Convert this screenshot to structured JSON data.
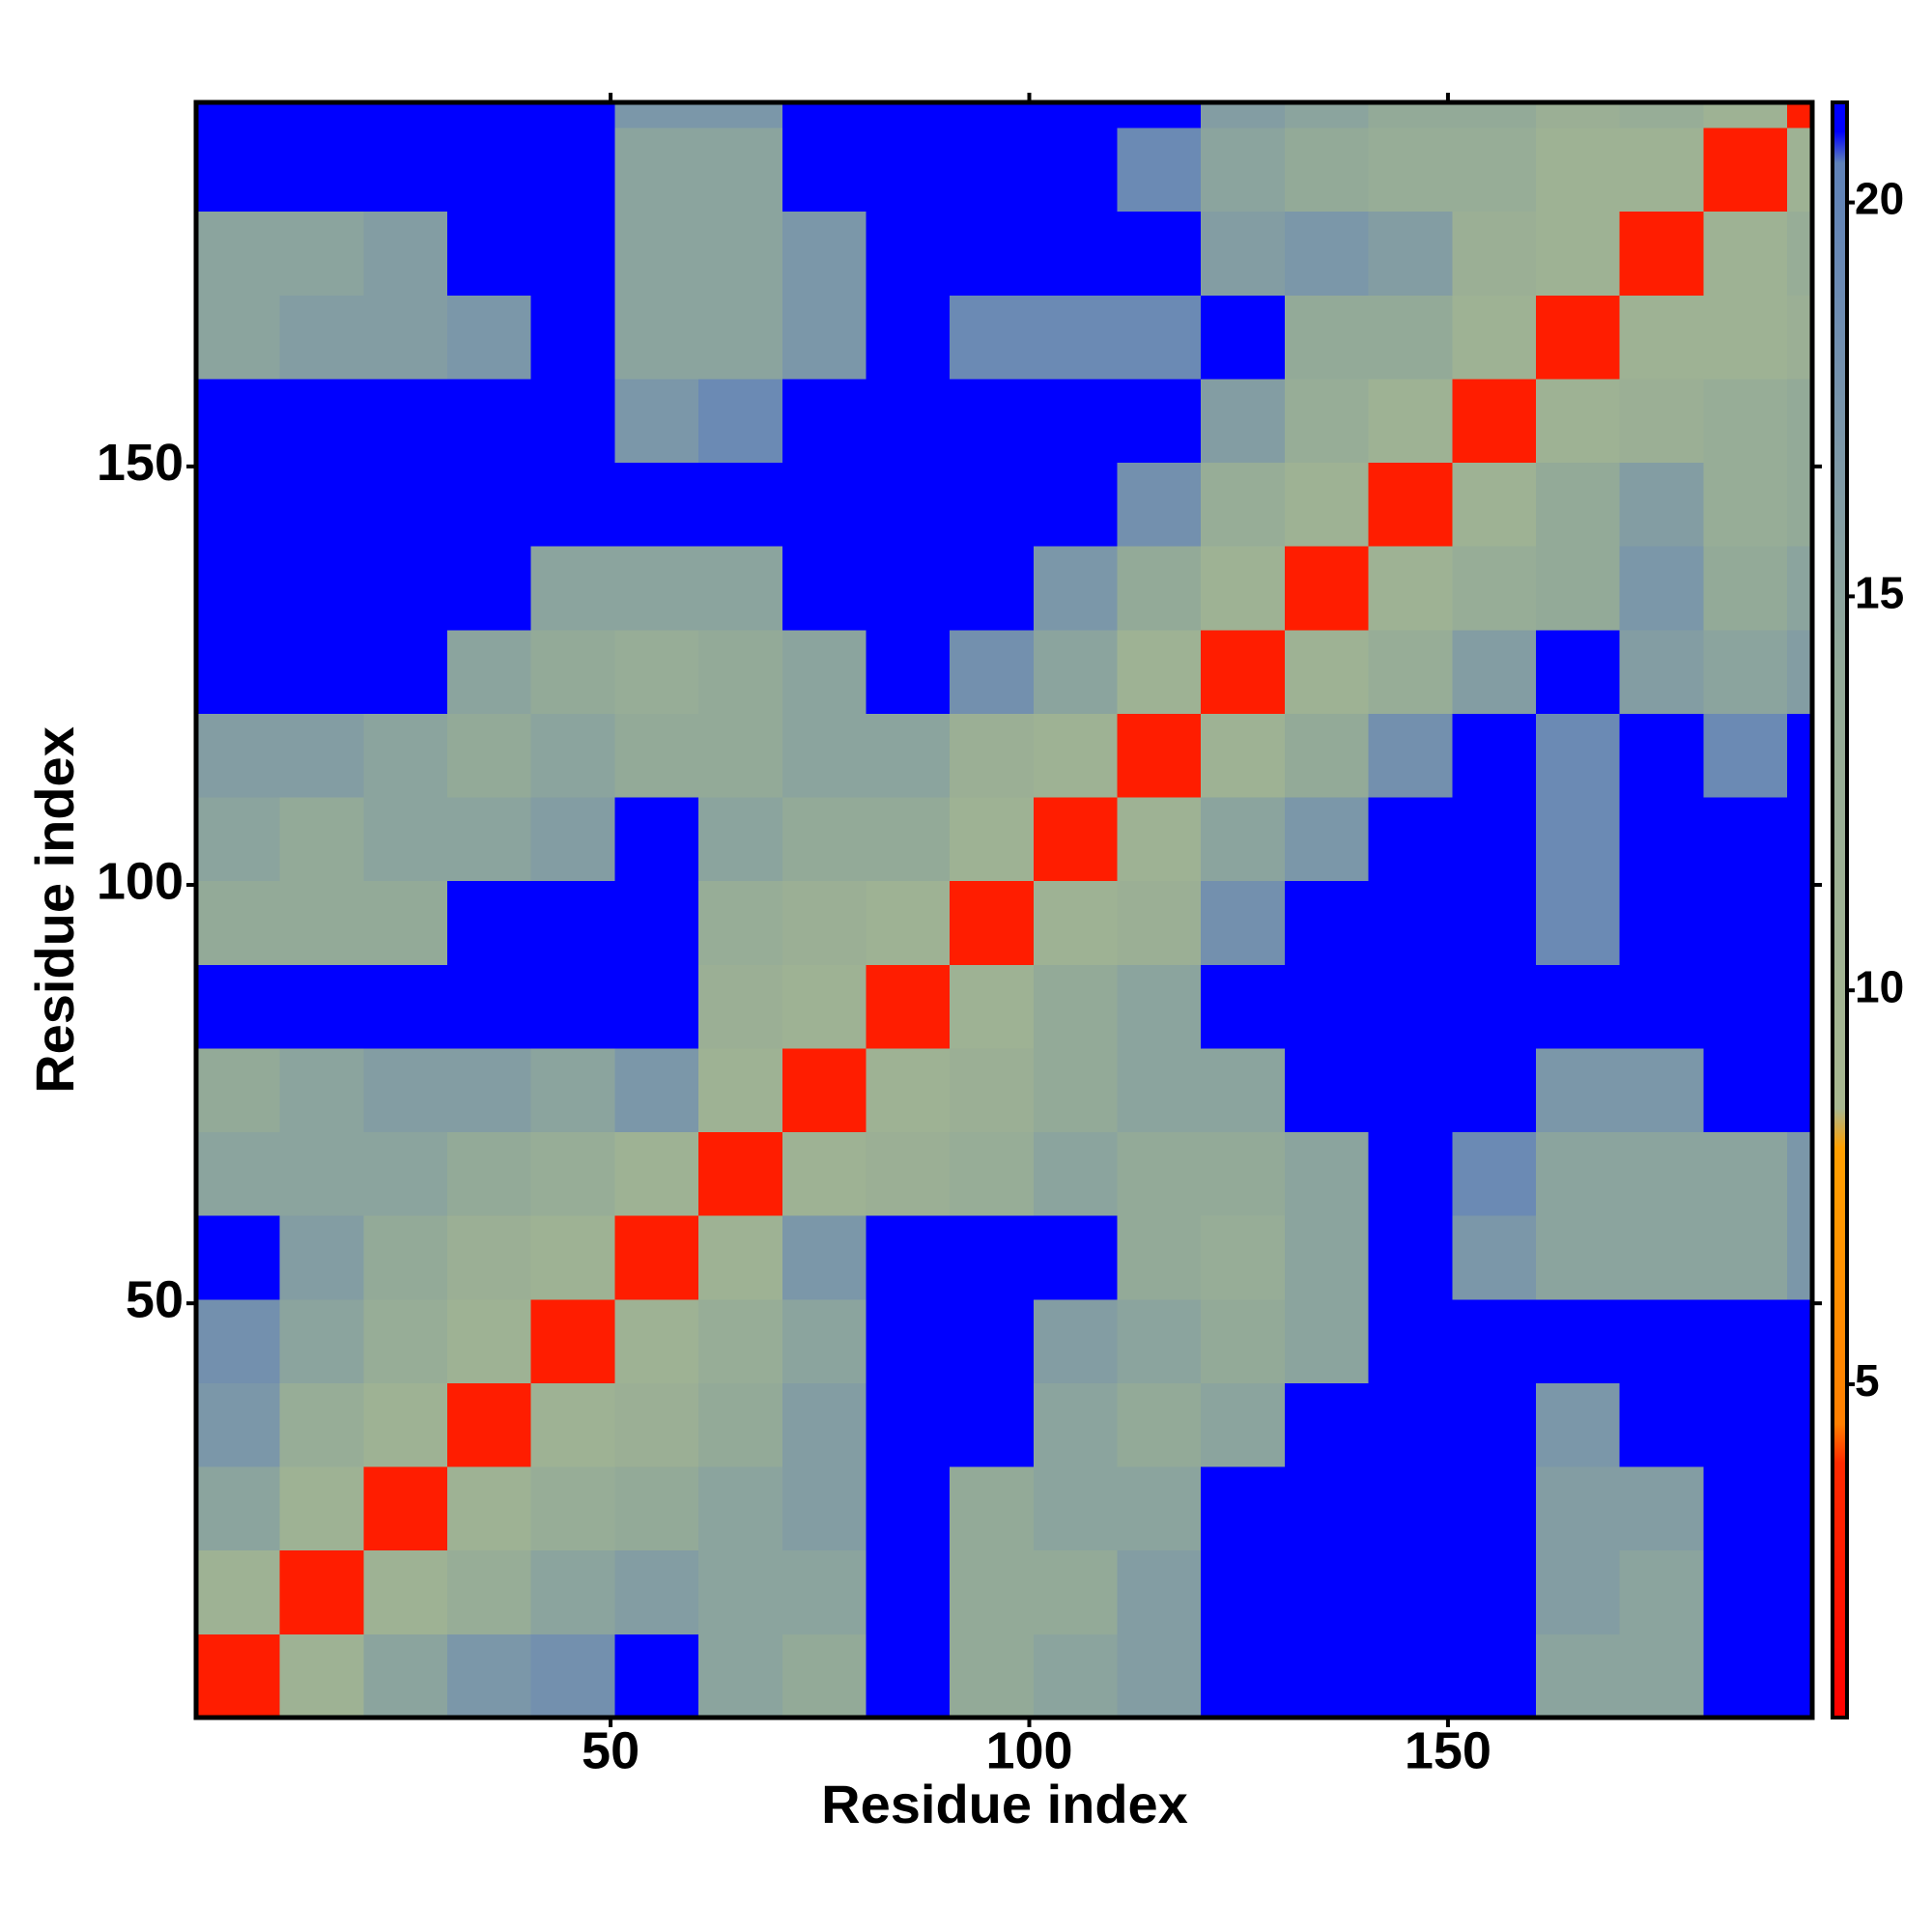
{
  "chart_data": {
    "type": "heatmap",
    "xlabel": "Residue index",
    "ylabel": "Residue index",
    "xlim": [
      0.5,
      193.5
    ],
    "ylim": [
      0.5,
      193.5
    ],
    "xticks": [
      50,
      100,
      150
    ],
    "yticks": [
      50,
      100,
      150
    ],
    "xbins": [
      0.5,
      10.5,
      20.5,
      30.5,
      40.5,
      50.5,
      60.5,
      70.5,
      80.5,
      90.5,
      100.5,
      110.5,
      120.5,
      130.5,
      140.5,
      150.5,
      160.5,
      170.5,
      180.5,
      190.5,
      193.5
    ],
    "ybins": [
      0.5,
      10.5,
      20.5,
      30.5,
      40.5,
      50.5,
      60.5,
      70.5,
      80.5,
      90.5,
      100.5,
      110.5,
      120.5,
      130.5,
      140.5,
      150.5,
      160.5,
      170.5,
      180.5,
      190.5,
      193.5
    ],
    "z": [
      [
        3,
        11,
        15,
        17,
        18,
        21,
        15,
        14,
        21,
        14,
        15,
        16,
        21,
        21,
        21,
        21,
        15,
        15,
        21,
        21
      ],
      [
        11,
        3,
        11,
        13,
        15,
        16,
        15,
        15,
        21,
        14,
        14,
        16,
        21,
        21,
        21,
        21,
        16,
        15,
        21,
        21
      ],
      [
        15,
        11,
        3,
        11,
        13,
        14,
        15,
        16,
        21,
        14,
        15,
        15,
        21,
        21,
        21,
        21,
        16,
        16,
        21,
        21
      ],
      [
        17,
        13,
        11,
        3,
        11,
        12,
        14,
        16,
        21,
        21,
        15,
        14,
        15,
        21,
        21,
        21,
        17,
        21,
        21,
        21
      ],
      [
        18,
        15,
        13,
        11,
        3,
        11,
        13,
        15,
        21,
        21,
        16,
        15,
        14,
        15,
        21,
        21,
        21,
        21,
        21,
        21
      ],
      [
        21,
        16,
        14,
        12,
        11,
        3,
        11,
        17,
        21,
        21,
        21,
        14,
        13,
        15,
        21,
        17,
        15,
        15,
        15,
        17
      ],
      [
        15,
        15,
        15,
        14,
        13,
        11,
        3,
        11,
        12,
        13,
        15,
        14,
        14,
        15,
        21,
        19,
        15,
        15,
        15,
        17
      ],
      [
        14,
        15,
        16,
        16,
        15,
        17,
        11,
        3,
        11,
        12,
        14,
        15,
        15,
        21,
        21,
        21,
        17,
        17,
        21,
        21
      ],
      [
        21,
        21,
        21,
        21,
        21,
        21,
        12,
        11,
        3,
        11,
        14,
        15,
        21,
        21,
        21,
        21,
        21,
        21,
        21,
        21
      ],
      [
        14,
        14,
        14,
        21,
        21,
        21,
        13,
        12,
        11,
        3,
        11,
        12,
        18,
        21,
        21,
        21,
        19,
        21,
        21,
        21
      ],
      [
        15,
        14,
        15,
        15,
        16,
        21,
        15,
        14,
        14,
        11,
        3,
        11,
        15,
        17,
        21,
        21,
        19,
        21,
        21,
        21
      ],
      [
        16,
        16,
        15,
        14,
        15,
        14,
        14,
        15,
        15,
        12,
        11,
        3,
        11,
        14,
        18,
        21,
        19,
        21,
        19,
        21
      ],
      [
        21,
        21,
        21,
        15,
        14,
        13,
        14,
        15,
        21,
        18,
        15,
        11,
        3,
        11,
        13,
        16,
        21,
        16,
        15,
        16
      ],
      [
        21,
        21,
        21,
        21,
        15,
        15,
        15,
        21,
        21,
        21,
        17,
        14,
        11,
        3,
        11,
        13,
        14,
        17,
        14,
        15
      ],
      [
        21,
        21,
        21,
        21,
        21,
        21,
        21,
        21,
        21,
        21,
        21,
        18,
        13,
        11,
        3,
        11,
        14,
        16,
        13,
        14
      ],
      [
        21,
        21,
        21,
        21,
        21,
        17,
        19,
        21,
        21,
        21,
        21,
        21,
        16,
        13,
        11,
        3,
        11,
        12,
        13,
        14
      ],
      [
        15,
        16,
        16,
        17,
        21,
        15,
        15,
        17,
        21,
        19,
        19,
        19,
        21,
        14,
        14,
        11,
        3,
        11,
        11,
        12
      ],
      [
        15,
        15,
        16,
        21,
        21,
        15,
        15,
        17,
        21,
        21,
        21,
        21,
        16,
        17,
        16,
        12,
        11,
        3,
        11,
        13
      ],
      [
        21,
        21,
        21,
        21,
        21,
        15,
        15,
        21,
        21,
        21,
        21,
        19,
        15,
        14,
        13,
        13,
        11,
        11,
        3,
        11
      ],
      [
        21,
        21,
        21,
        21,
        21,
        17,
        17,
        21,
        21,
        21,
        21,
        21,
        16,
        15,
        14,
        14,
        12,
        13,
        11,
        3
      ]
    ],
    "colorscale": [
      [
        0.77,
        "#ff0000"
      ],
      [
        4,
        "#ff2a00"
      ],
      [
        4.5,
        "#ff7f00"
      ],
      [
        8,
        "#ffa000"
      ],
      [
        8.5,
        "#a8b890"
      ],
      [
        14,
        "#93aa98"
      ],
      [
        19,
        "#6b8ab4"
      ],
      [
        20.5,
        "#5f82b8"
      ],
      [
        20.9,
        "#0000ff"
      ],
      [
        21.27,
        "#0000ff"
      ]
    ],
    "colorbar": {
      "lim": [
        0.77,
        21.27
      ],
      "ticks": [
        5,
        10,
        15,
        20
      ]
    }
  }
}
